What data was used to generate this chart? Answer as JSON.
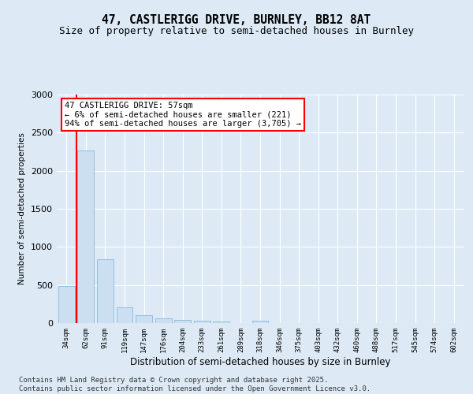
{
  "title1": "47, CASTLERIGG DRIVE, BURNLEY, BB12 8AT",
  "title2": "Size of property relative to semi-detached houses in Burnley",
  "xlabel": "Distribution of semi-detached houses by size in Burnley",
  "ylabel": "Number of semi-detached properties",
  "categories": [
    "34sqm",
    "62sqm",
    "91sqm",
    "119sqm",
    "147sqm",
    "176sqm",
    "204sqm",
    "233sqm",
    "261sqm",
    "289sqm",
    "318sqm",
    "346sqm",
    "375sqm",
    "403sqm",
    "432sqm",
    "460sqm",
    "488sqm",
    "517sqm",
    "545sqm",
    "574sqm",
    "602sqm"
  ],
  "values": [
    490,
    2270,
    840,
    210,
    105,
    60,
    40,
    30,
    20,
    0,
    35,
    0,
    0,
    0,
    0,
    0,
    0,
    0,
    0,
    0,
    0
  ],
  "bar_color": "#ccdff0",
  "bar_edge_color": "#7aafd4",
  "vline_color": "red",
  "annotation_title": "47 CASTLERIGG DRIVE: 57sqm",
  "annotation_line1": "← 6% of semi-detached houses are smaller (221)",
  "annotation_line2": "94% of semi-detached houses are larger (3,705) →",
  "ylim": [
    0,
    3000
  ],
  "yticks": [
    0,
    500,
    1000,
    1500,
    2000,
    2500,
    3000
  ],
  "footer1": "Contains HM Land Registry data © Crown copyright and database right 2025.",
  "footer2": "Contains public sector information licensed under the Open Government Licence v3.0.",
  "bg_color": "#ddeaf6",
  "plot_bg_color": "#ddeaf6"
}
